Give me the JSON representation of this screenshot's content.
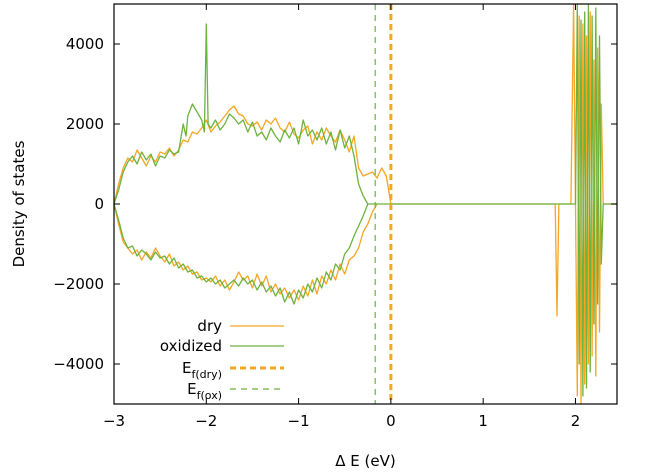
{
  "chart_data": {
    "type": "line",
    "title": "",
    "xlabel": "Δ E (eV)",
    "ylabel": "Density of states",
    "xlim": [
      -3,
      2.45
    ],
    "ylim": [
      -5000,
      5000
    ],
    "xticks": [
      -3,
      -2,
      -1,
      0,
      1,
      2
    ],
    "yticks": [
      -4000,
      -2000,
      0,
      2000,
      4000
    ],
    "grid": false,
    "legend_position": "bottom-left",
    "series": [
      {
        "name": "dry",
        "color": "#f5a623",
        "style": "solid",
        "up": [
          [
            -3,
            0
          ],
          [
            -2.95,
            500
          ],
          [
            -2.9,
            900
          ],
          [
            -2.85,
            1150
          ],
          [
            -2.8,
            1050
          ],
          [
            -2.75,
            1350
          ],
          [
            -2.7,
            1150
          ],
          [
            -2.65,
            950
          ],
          [
            -2.6,
            1200
          ],
          [
            -2.55,
            1050
          ],
          [
            -2.5,
            1300
          ],
          [
            -2.45,
            1250
          ],
          [
            -2.4,
            1400
          ],
          [
            -2.35,
            1200
          ],
          [
            -2.3,
            1350
          ],
          [
            -2.25,
            1600
          ],
          [
            -2.2,
            1550
          ],
          [
            -2.15,
            1800
          ],
          [
            -2.1,
            1750
          ],
          [
            -2.05,
            1900
          ],
          [
            -2.0,
            2100
          ],
          [
            -1.95,
            1800
          ],
          [
            -1.9,
            1950
          ],
          [
            -1.85,
            2050
          ],
          [
            -1.8,
            2200
          ],
          [
            -1.75,
            2350
          ],
          [
            -1.7,
            2450
          ],
          [
            -1.65,
            2250
          ],
          [
            -1.6,
            2200
          ],
          [
            -1.55,
            2000
          ],
          [
            -1.5,
            1950
          ],
          [
            -1.45,
            2050
          ],
          [
            -1.4,
            1850
          ],
          [
            -1.35,
            2100
          ],
          [
            -1.3,
            2000
          ],
          [
            -1.25,
            2150
          ],
          [
            -1.2,
            1900
          ],
          [
            -1.15,
            1800
          ],
          [
            -1.1,
            2050
          ],
          [
            -1.05,
            1750
          ],
          [
            -1.0,
            1650
          ],
          [
            -0.95,
            1850
          ],
          [
            -0.9,
            1950
          ],
          [
            -0.85,
            1500
          ],
          [
            -0.8,
            1800
          ],
          [
            -0.75,
            1600
          ],
          [
            -0.7,
            1900
          ],
          [
            -0.65,
            1700
          ],
          [
            -0.6,
            1550
          ],
          [
            -0.55,
            1850
          ],
          [
            -0.5,
            1600
          ],
          [
            -0.45,
            1300
          ],
          [
            -0.4,
            1700
          ],
          [
            -0.35,
            900
          ],
          [
            -0.3,
            700
          ],
          [
            -0.25,
            750
          ],
          [
            -0.2,
            800
          ],
          [
            -0.15,
            650
          ],
          [
            -0.1,
            900
          ],
          [
            -0.05,
            700
          ],
          [
            0.0,
            0
          ],
          [
            1.78,
            0
          ],
          [
            1.8,
            -2800
          ],
          [
            1.82,
            0
          ],
          [
            1.95,
            0
          ],
          [
            1.98,
            5000
          ],
          [
            2.0,
            0
          ],
          [
            2.02,
            -4800
          ],
          [
            2.04,
            4700
          ],
          [
            2.06,
            -5000
          ],
          [
            2.08,
            4500
          ],
          [
            2.1,
            -4500
          ],
          [
            2.12,
            4200
          ],
          [
            2.14,
            -4000
          ],
          [
            2.16,
            4800
          ],
          [
            2.18,
            -3800
          ],
          [
            2.2,
            3600
          ],
          [
            2.22,
            -4300
          ],
          [
            2.24,
            3900
          ],
          [
            2.26,
            -3200
          ],
          [
            2.28,
            2500
          ],
          [
            2.3,
            0
          ],
          [
            2.45,
            0
          ]
        ],
        "down": [
          [
            -3,
            0
          ],
          [
            -2.95,
            -500
          ],
          [
            -2.9,
            -950
          ],
          [
            -2.85,
            -1100
          ],
          [
            -2.8,
            -1250
          ],
          [
            -2.75,
            -1150
          ],
          [
            -2.7,
            -1400
          ],
          [
            -2.65,
            -1200
          ],
          [
            -2.6,
            -1350
          ],
          [
            -2.55,
            -1100
          ],
          [
            -2.5,
            -1300
          ],
          [
            -2.45,
            -1450
          ],
          [
            -2.4,
            -1250
          ],
          [
            -2.35,
            -1550
          ],
          [
            -2.3,
            -1450
          ],
          [
            -2.25,
            -1650
          ],
          [
            -2.2,
            -1550
          ],
          [
            -2.15,
            -1750
          ],
          [
            -2.1,
            -1700
          ],
          [
            -2.05,
            -1900
          ],
          [
            -2.0,
            -1850
          ],
          [
            -1.95,
            -1950
          ],
          [
            -1.9,
            -1800
          ],
          [
            -1.85,
            -2050
          ],
          [
            -1.8,
            -1900
          ],
          [
            -1.75,
            -2150
          ],
          [
            -1.7,
            -1950
          ],
          [
            -1.65,
            -1700
          ],
          [
            -1.6,
            -1900
          ],
          [
            -1.55,
            -1800
          ],
          [
            -1.5,
            -2100
          ],
          [
            -1.45,
            -1750
          ],
          [
            -1.4,
            -2050
          ],
          [
            -1.35,
            -1800
          ],
          [
            -1.3,
            -2200
          ],
          [
            -1.25,
            -2000
          ],
          [
            -1.2,
            -2250
          ],
          [
            -1.15,
            -2100
          ],
          [
            -1.1,
            -2350
          ],
          [
            -1.05,
            -2150
          ],
          [
            -1.0,
            -2400
          ],
          [
            -0.95,
            -2050
          ],
          [
            -0.9,
            -2300
          ],
          [
            -0.85,
            -1900
          ],
          [
            -0.8,
            -2250
          ],
          [
            -0.75,
            -1800
          ],
          [
            -0.7,
            -2000
          ],
          [
            -0.65,
            -1650
          ],
          [
            -0.6,
            -1900
          ],
          [
            -0.55,
            -1500
          ],
          [
            -0.5,
            -1750
          ],
          [
            -0.45,
            -1400
          ],
          [
            -0.4,
            -1300
          ],
          [
            -0.35,
            -1100
          ],
          [
            -0.3,
            -700
          ],
          [
            -0.25,
            -500
          ],
          [
            -0.2,
            -200
          ],
          [
            -0.15,
            0
          ]
        ]
      },
      {
        "name": "oxidized",
        "color": "#6db33f",
        "style": "solid",
        "up": [
          [
            -3,
            0
          ],
          [
            -2.95,
            350
          ],
          [
            -2.9,
            800
          ],
          [
            -2.85,
            1050
          ],
          [
            -2.8,
            1200
          ],
          [
            -2.75,
            1000
          ],
          [
            -2.7,
            1300
          ],
          [
            -2.65,
            1100
          ],
          [
            -2.6,
            1250
          ],
          [
            -2.55,
            950
          ],
          [
            -2.5,
            1200
          ],
          [
            -2.45,
            1150
          ],
          [
            -2.4,
            1350
          ],
          [
            -2.35,
            1250
          ],
          [
            -2.3,
            1300
          ],
          [
            -2.25,
            2000
          ],
          [
            -2.22,
            1700
          ],
          [
            -2.2,
            2200
          ],
          [
            -2.15,
            2500
          ],
          [
            -2.1,
            2300
          ],
          [
            -2.05,
            2100
          ],
          [
            -2.02,
            1800
          ],
          [
            -2.0,
            4500
          ],
          [
            -1.98,
            2000
          ],
          [
            -1.95,
            1900
          ],
          [
            -1.9,
            2100
          ],
          [
            -1.85,
            1850
          ],
          [
            -1.8,
            2000
          ],
          [
            -1.75,
            2250
          ],
          [
            -1.7,
            2150
          ],
          [
            -1.65,
            2000
          ],
          [
            -1.6,
            2100
          ],
          [
            -1.55,
            1800
          ],
          [
            -1.5,
            2050
          ],
          [
            -1.45,
            1700
          ],
          [
            -1.4,
            1800
          ],
          [
            -1.35,
            1600
          ],
          [
            -1.3,
            1900
          ],
          [
            -1.25,
            1700
          ],
          [
            -1.2,
            1550
          ],
          [
            -1.15,
            1850
          ],
          [
            -1.1,
            1650
          ],
          [
            -1.05,
            1900
          ],
          [
            -1.0,
            1500
          ],
          [
            -0.95,
            2100
          ],
          [
            -0.9,
            1700
          ],
          [
            -0.85,
            1850
          ],
          [
            -0.8,
            1600
          ],
          [
            -0.75,
            1900
          ],
          [
            -0.7,
            1500
          ],
          [
            -0.65,
            1800
          ],
          [
            -0.6,
            1350
          ],
          [
            -0.55,
            1850
          ],
          [
            -0.5,
            1400
          ],
          [
            -0.45,
            1700
          ],
          [
            -0.4,
            1200
          ],
          [
            -0.35,
            500
          ],
          [
            -0.3,
            200
          ],
          [
            -0.25,
            0
          ],
          [
            2.0,
            0
          ],
          [
            2.02,
            5000
          ],
          [
            2.04,
            -4000
          ],
          [
            2.06,
            4600
          ],
          [
            2.08,
            -4800
          ],
          [
            2.1,
            4800
          ],
          [
            2.12,
            -4600
          ],
          [
            2.14,
            5000
          ],
          [
            2.16,
            -4200
          ],
          [
            2.18,
            4700
          ],
          [
            2.2,
            -3000
          ],
          [
            2.22,
            4900
          ],
          [
            2.24,
            -2500
          ],
          [
            2.26,
            4200
          ],
          [
            2.28,
            -1500
          ],
          [
            2.3,
            0
          ],
          [
            2.45,
            0
          ]
        ],
        "down": [
          [
            -3,
            0
          ],
          [
            -2.95,
            -400
          ],
          [
            -2.9,
            -850
          ],
          [
            -2.85,
            -1100
          ],
          [
            -2.8,
            -1050
          ],
          [
            -2.75,
            -1300
          ],
          [
            -2.7,
            -1150
          ],
          [
            -2.65,
            -1250
          ],
          [
            -2.6,
            -1400
          ],
          [
            -2.55,
            -1200
          ],
          [
            -2.5,
            -1350
          ],
          [
            -2.45,
            -1300
          ],
          [
            -2.4,
            -1500
          ],
          [
            -2.35,
            -1350
          ],
          [
            -2.3,
            -1600
          ],
          [
            -2.25,
            -1500
          ],
          [
            -2.2,
            -1700
          ],
          [
            -2.15,
            -1650
          ],
          [
            -2.1,
            -1850
          ],
          [
            -2.05,
            -1800
          ],
          [
            -2.0,
            -1950
          ],
          [
            -1.95,
            -1850
          ],
          [
            -1.9,
            -2000
          ],
          [
            -1.85,
            -1900
          ],
          [
            -1.8,
            -2100
          ],
          [
            -1.75,
            -2000
          ],
          [
            -1.7,
            -1900
          ],
          [
            -1.65,
            -2050
          ],
          [
            -1.6,
            -1850
          ],
          [
            -1.55,
            -2000
          ],
          [
            -1.5,
            -1900
          ],
          [
            -1.45,
            -2150
          ],
          [
            -1.4,
            -1950
          ],
          [
            -1.35,
            -2200
          ],
          [
            -1.3,
            -2050
          ],
          [
            -1.25,
            -2300
          ],
          [
            -1.2,
            -2100
          ],
          [
            -1.15,
            -2450
          ],
          [
            -1.1,
            -2200
          ],
          [
            -1.05,
            -2500
          ],
          [
            -1.0,
            -2150
          ],
          [
            -0.95,
            -2350
          ],
          [
            -0.9,
            -2000
          ],
          [
            -0.85,
            -2200
          ],
          [
            -0.8,
            -1850
          ],
          [
            -0.75,
            -2100
          ],
          [
            -0.7,
            -1700
          ],
          [
            -0.65,
            -1900
          ],
          [
            -0.6,
            -1500
          ],
          [
            -0.55,
            -1650
          ],
          [
            -0.5,
            -1250
          ],
          [
            -0.45,
            -1100
          ],
          [
            -0.4,
            -800
          ],
          [
            -0.35,
            -550
          ],
          [
            -0.3,
            -300
          ],
          [
            -0.25,
            0
          ]
        ]
      }
    ],
    "vlines": [
      {
        "label_main": "E",
        "label_sub": "f(dry)",
        "x": 0.0,
        "color": "#f5a623",
        "style": "dashed-thick"
      },
      {
        "label_main": "E",
        "label_sub": "f(ox)",
        "x": -0.17,
        "color": "#6db33f",
        "style": "dashed-thin"
      }
    ]
  }
}
